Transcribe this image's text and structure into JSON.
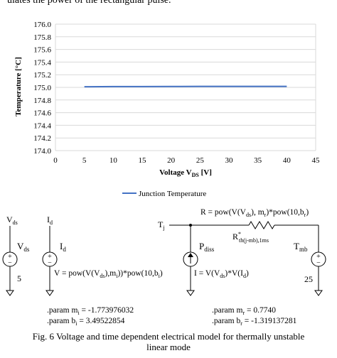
{
  "top_text": "ulates the power of the rectangular pulse.",
  "chart_data": {
    "type": "line",
    "title": "",
    "xlabel": "Voltage V",
    "xlabel_sub": "DS",
    "xlabel_unit": " [V]",
    "ylabel": "Temperature [°C]",
    "xlim": [
      0,
      45
    ],
    "ylim": [
      174.0,
      176.0
    ],
    "xticks": [
      "0",
      "5",
      "10",
      "15",
      "20",
      "25",
      "30",
      "35",
      "40",
      "45"
    ],
    "yticks": [
      "174.0",
      "174.2",
      "174.4",
      "174.6",
      "174.8",
      "175.0",
      "175.2",
      "175.4",
      "175.6",
      "175.8",
      "176.0"
    ],
    "grid": true,
    "legend_position": "bottom",
    "series": [
      {
        "name": "Junction Temperature",
        "color": "#4472c4",
        "x": [
          5,
          10,
          15,
          20,
          25,
          30,
          35,
          40
        ],
        "y": [
          175.01,
          175.012,
          175.013,
          175.014,
          175.015,
          175.015,
          175.016,
          175.016
        ]
      }
    ]
  },
  "circuit": {
    "vds_node": "V",
    "vds_node_sub": "ds",
    "vds_source": "V",
    "vds_source_sub": "ds",
    "vds_value": "5",
    "id_node": "I",
    "id_node_sub": "d",
    "id_source": "I",
    "id_source_sub": "d",
    "id_formula": "V = pow(V(V",
    "id_formula_sub1": "ds",
    "id_formula_mid": "),m",
    "id_formula_sub2": "i",
    "id_formula_end": "))*pow(10,b",
    "id_formula_sub3": "i",
    "id_formula_close": ")",
    "param_mi": ".param m",
    "param_mi_sub": "i",
    "param_mi_val": " = -1.773976032",
    "param_bi": ".param b",
    "param_bi_sub": "i",
    "param_bi_val": " = 3.49522854",
    "tj": "T",
    "tj_sub": "j",
    "r_formula": "R = pow(V(V",
    "r_formula_sub1": "ds",
    "r_formula_mid": "), m",
    "r_formula_sub2": "r",
    "r_formula_end": ")*pow(10,b",
    "r_formula_sub3": "r",
    "r_formula_close": ")",
    "rth": "R",
    "rth_sup": "*",
    "rth_sub": "th(j-mb),1ms",
    "pdiss": "P",
    "pdiss_sub": "diss",
    "pdiss_formula": "I = V(V",
    "pdiss_formula_sub1": "ds",
    "pdiss_formula_mid": ")*V(I",
    "pdiss_formula_sub2": "d",
    "pdiss_formula_close": ")",
    "tmb": "T",
    "tmb_sub": "mb",
    "tmb_value": "25",
    "param_mr": ".param m",
    "param_mr_sub": "r",
    "param_mr_val": " = 0.7740",
    "param_br": ".param b",
    "param_br_sub": "r",
    "param_br_val": " = -1.319137281"
  },
  "caption": {
    "line1": "Fig. 6 Voltage and time dependent electrical model for thermally unstable",
    "line2": "linear mode"
  }
}
